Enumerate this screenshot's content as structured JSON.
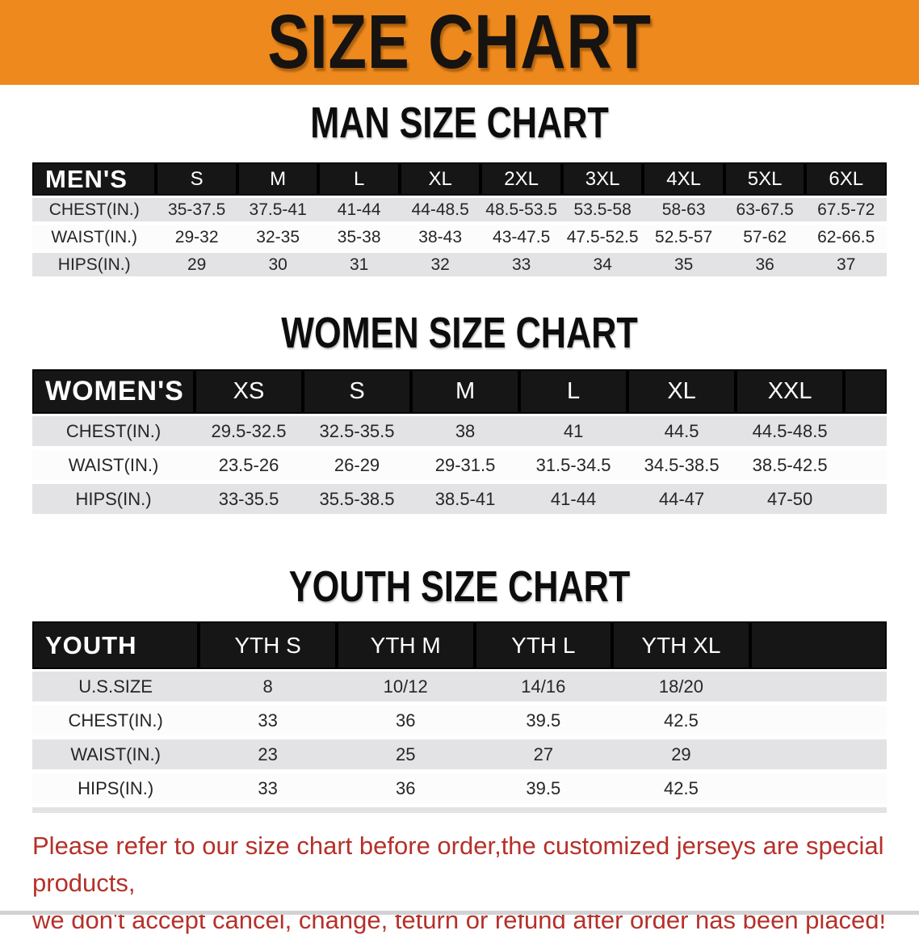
{
  "banner": {
    "title": "SIZE CHART"
  },
  "headings": {
    "men": "MAN SIZE CHART",
    "women": "WOMEN SIZE CHART",
    "youth": "YOUTH SIZE CHART"
  },
  "tables": {
    "mens": {
      "header_label": "MEN'S",
      "columns": [
        "S",
        "M",
        "L",
        "XL",
        "2XL",
        "3XL",
        "4XL",
        "5XL",
        "6XL"
      ],
      "rows": [
        {
          "label": "CHEST(IN.)",
          "values": [
            "35-37.5",
            "37.5-41",
            "41-44",
            "44-48.5",
            "48.5-53.5",
            "53.5-58",
            "58-63",
            "63-67.5",
            "67.5-72"
          ]
        },
        {
          "label": "WAIST(IN.)",
          "values": [
            "29-32",
            "32-35",
            "35-38",
            "38-43",
            "43-47.5",
            "47.5-52.5",
            "52.5-57",
            "57-62",
            "62-66.5"
          ]
        },
        {
          "label": "HIPS(IN.)",
          "values": [
            "29",
            "30",
            "31",
            "32",
            "33",
            "34",
            "35",
            "36",
            "37"
          ]
        }
      ]
    },
    "womens": {
      "header_label": "WOMEN'S",
      "columns": [
        "XS",
        "S",
        "M",
        "L",
        "XL",
        "XXL"
      ],
      "rows": [
        {
          "label": "CHEST(IN.)",
          "values": [
            "29.5-32.5",
            "32.5-35.5",
            "38",
            "41",
            "44.5",
            "44.5-48.5"
          ]
        },
        {
          "label": "WAIST(IN.)",
          "values": [
            "23.5-26",
            "26-29",
            "29-31.5",
            "31.5-34.5",
            "34.5-38.5",
            "38.5-42.5"
          ]
        },
        {
          "label": "HIPS(IN.)",
          "values": [
            "33-35.5",
            "35.5-38.5",
            "38.5-41",
            "41-44",
            "44-47",
            "47-50"
          ]
        }
      ]
    },
    "youth": {
      "header_label": "YOUTH",
      "columns": [
        "YTH S",
        "YTH M",
        "YTH L",
        "YTH XL"
      ],
      "rows": [
        {
          "label": "U.S.SIZE",
          "values": [
            "8",
            "10/12",
            "14/16",
            "18/20"
          ]
        },
        {
          "label": "CHEST(IN.)",
          "values": [
            "33",
            "36",
            "39.5",
            "42.5"
          ]
        },
        {
          "label": "WAIST(IN.)",
          "values": [
            "23",
            "25",
            "27",
            "29"
          ]
        },
        {
          "label": "HIPS(IN.)",
          "values": [
            "33",
            "36",
            "39.5",
            "42.5"
          ]
        }
      ]
    }
  },
  "footer_note": {
    "lines": [
      "Please refer to our size chart before order,the customized jerseys are special products,",
      "we don't accept cancel, change, teturn or refund after order has been placed!"
    ]
  },
  "colors": {
    "banner_bg": "#ee8a1d",
    "banner_text": "#161310",
    "table_header_bg": "#161616",
    "table_header_text": "#ffffff",
    "row_stripe_gray": "#e3e3e5",
    "row_stripe_white": "#fcfcfd",
    "footer_text": "#b5312a"
  }
}
